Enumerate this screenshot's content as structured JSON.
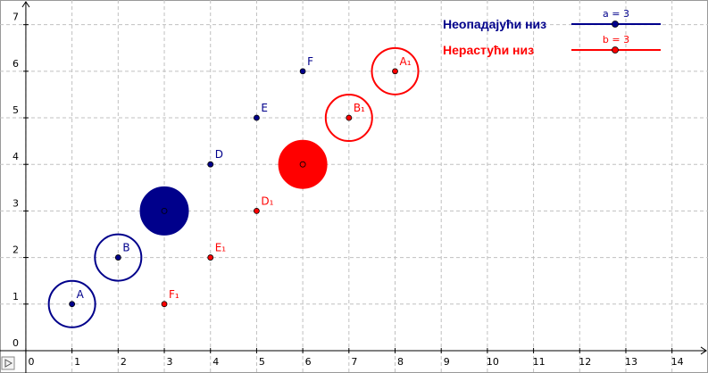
{
  "chart_data": {
    "type": "scatter",
    "xlim": [
      -0.56,
      14.78
    ],
    "ylim": [
      -0.48,
      7.53
    ],
    "xticks": [
      0,
      1,
      2,
      3,
      4,
      5,
      6,
      7,
      8,
      9,
      10,
      11,
      12,
      13,
      14
    ],
    "yticks": [
      0,
      1,
      2,
      3,
      4,
      5,
      6,
      7
    ],
    "grid": true,
    "series": [
      {
        "name": "Неопадајући низ",
        "color": "#00008b",
        "x": [
          1,
          2,
          3,
          4,
          5,
          6
        ],
        "values": [
          1,
          2,
          3,
          4,
          5,
          6
        ],
        "point_labels": [
          "A",
          "B",
          null,
          "D",
          "E",
          "F"
        ],
        "slider": {
          "label": "a = 3",
          "value": 3
        }
      },
      {
        "name": "Нерастући низ",
        "color": "#ff0000",
        "x": [
          8,
          7,
          6,
          5,
          4,
          3
        ],
        "values": [
          6,
          5,
          4,
          3,
          2,
          1
        ],
        "point_labels": [
          "A₁",
          "B₁",
          null,
          "D₁",
          "E₁",
          "F₁"
        ],
        "slider": {
          "label": "b = 3",
          "value": 3
        }
      }
    ]
  }
}
